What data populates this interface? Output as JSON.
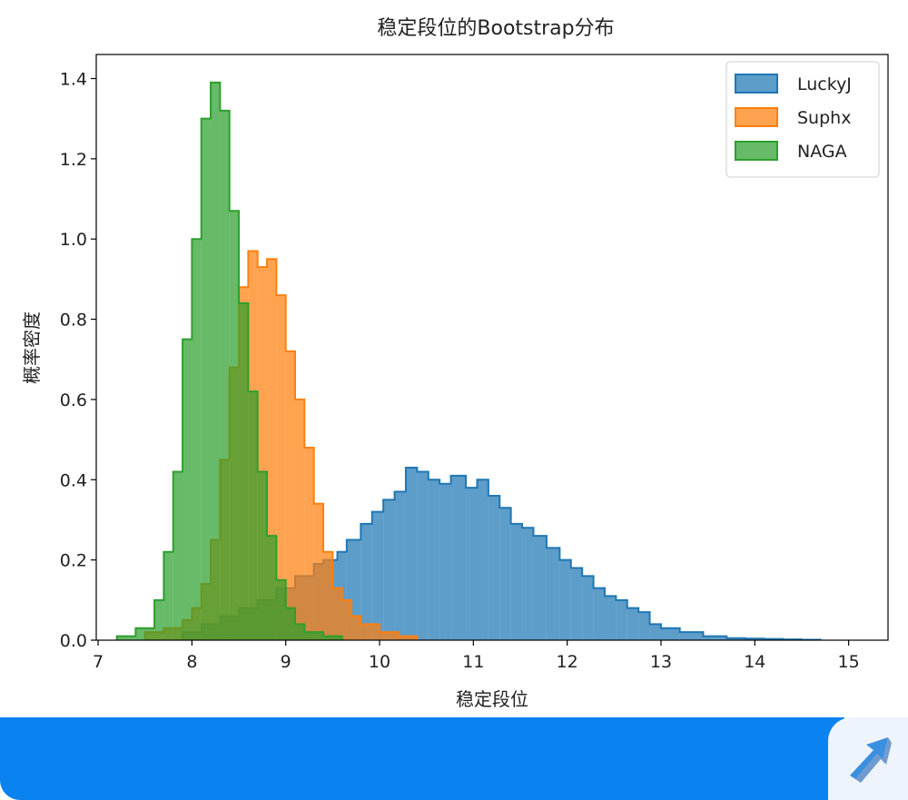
{
  "chart_data": {
    "type": "histogram",
    "title": "稳定段位的Bootstrap分布",
    "xlabel": "稳定段位",
    "ylabel": "概率密度",
    "xlim": [
      6.98,
      15.42
    ],
    "ylim": [
      0,
      1.46
    ],
    "xticks": [
      7,
      8,
      9,
      10,
      11,
      12,
      13,
      14,
      15
    ],
    "yticks": [
      0.0,
      0.2,
      0.4,
      0.6,
      0.8,
      1.0,
      1.2,
      1.4
    ],
    "legend": {
      "position": "top-right",
      "entries": [
        "LuckyJ",
        "Suphx",
        "NAGA"
      ]
    },
    "grid": false,
    "series": [
      {
        "name": "LuckyJ",
        "color": "#1f77b4",
        "edges": [
          7.9,
          8.1,
          8.3,
          8.5,
          8.7,
          8.9,
          9.1,
          9.3,
          9.4,
          9.55,
          9.65,
          9.8,
          9.92,
          10.04,
          10.16,
          10.28,
          10.4,
          10.52,
          10.64,
          10.76,
          10.92,
          11.04,
          11.16,
          11.28,
          11.4,
          11.52,
          11.64,
          11.78,
          11.92,
          12.04,
          12.16,
          12.28,
          12.4,
          12.52,
          12.64,
          12.76,
          12.88,
          13.0,
          13.2,
          13.45,
          13.7,
          13.9,
          14.1,
          14.3,
          14.5,
          14.7
        ],
        "density": [
          0.02,
          0.04,
          0.06,
          0.08,
          0.1,
          0.13,
          0.16,
          0.19,
          0.2,
          0.22,
          0.25,
          0.29,
          0.32,
          0.35,
          0.37,
          0.43,
          0.42,
          0.4,
          0.39,
          0.41,
          0.38,
          0.4,
          0.36,
          0.33,
          0.29,
          0.28,
          0.26,
          0.23,
          0.2,
          0.18,
          0.16,
          0.13,
          0.11,
          0.1,
          0.08,
          0.07,
          0.04,
          0.03,
          0.02,
          0.01,
          0.005,
          0.004,
          0.003,
          0.002,
          0.001
        ]
      },
      {
        "name": "Suphx",
        "color": "#ff7f0e",
        "edges": [
          7.5,
          7.7,
          7.9,
          8.0,
          8.1,
          8.2,
          8.3,
          8.4,
          8.5,
          8.6,
          8.7,
          8.8,
          8.9,
          9.0,
          9.1,
          9.2,
          9.3,
          9.4,
          9.5,
          9.6,
          9.7,
          9.8,
          10.0,
          10.2,
          10.4
        ],
        "density": [
          0.02,
          0.03,
          0.05,
          0.08,
          0.14,
          0.25,
          0.45,
          0.68,
          0.88,
          0.97,
          0.93,
          0.95,
          0.86,
          0.72,
          0.6,
          0.48,
          0.34,
          0.22,
          0.13,
          0.1,
          0.06,
          0.04,
          0.02,
          0.01
        ]
      },
      {
        "name": "NAGA",
        "color": "#2ca02c",
        "edges": [
          7.2,
          7.4,
          7.6,
          7.7,
          7.8,
          7.9,
          8.0,
          8.1,
          8.2,
          8.3,
          8.4,
          8.5,
          8.6,
          8.7,
          8.8,
          8.9,
          9.0,
          9.1,
          9.2,
          9.4,
          9.6
        ],
        "density": [
          0.01,
          0.03,
          0.1,
          0.22,
          0.42,
          0.75,
          1.0,
          1.3,
          1.39,
          1.32,
          1.07,
          0.84,
          0.62,
          0.42,
          0.26,
          0.15,
          0.08,
          0.04,
          0.02,
          0.01
        ]
      }
    ]
  }
}
